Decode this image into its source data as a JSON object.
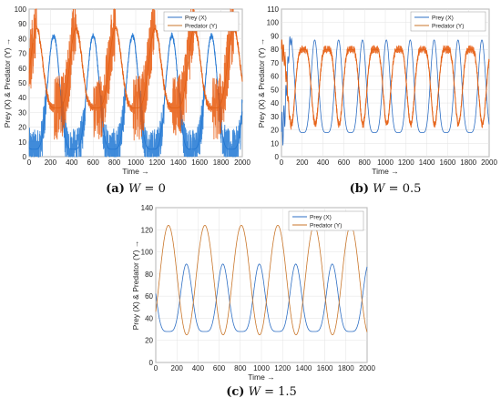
{
  "colors": {
    "prey": "#2e6fc4",
    "predator": "#c9762a",
    "predatorNoisy": "#e8590c",
    "preyNoisy": "#1f77d4",
    "grid": "#e3e3e3"
  },
  "chart_data": [
    {
      "type": "line",
      "caption": {
        "label": "(a)",
        "var": "W",
        "eq": "= 0"
      },
      "xlabel": "Time →",
      "ylabel": "Prey (X) & Predator (Y) →",
      "xlim": [
        0,
        2000
      ],
      "ylim": [
        0,
        100
      ],
      "xticks": [
        0,
        200,
        400,
        600,
        800,
        1000,
        1200,
        1400,
        1600,
        1800,
        2000
      ],
      "yticks": [
        0,
        10,
        20,
        30,
        40,
        50,
        60,
        70,
        80,
        90,
        100
      ],
      "grid": true,
      "legend": "top-right",
      "series": [
        {
          "name": "Prey (X)",
          "period": 370,
          "phase": 230,
          "min": 5,
          "max": 82,
          "shape": "peak",
          "noise": 14,
          "noiseFrom": 0.58
        },
        {
          "name": "Predator (Y)",
          "period": 370,
          "phase": 70,
          "min": 33,
          "max": 87,
          "shape": "peak",
          "noise": 22,
          "noiseFrom": 0.55
        }
      ]
    },
    {
      "type": "line",
      "caption": {
        "label": "(b)",
        "var": "W",
        "eq": "= 0.5"
      },
      "xlabel": "Time →",
      "ylabel": "Prey (X) & Predator (Y) →",
      "xlim": [
        0,
        2000
      ],
      "ylim": [
        0,
        110
      ],
      "xticks": [
        0,
        200,
        400,
        600,
        800,
        1000,
        1200,
        1400,
        1600,
        1800,
        2000
      ],
      "yticks": [
        0,
        10,
        20,
        30,
        40,
        50,
        60,
        70,
        80,
        90,
        100,
        110
      ],
      "grid": true,
      "legend": "top-right",
      "series": [
        {
          "name": "Prey (X)",
          "period": 230,
          "phase": 320,
          "min": 18,
          "max": 87,
          "shape": "peak",
          "noise": 0,
          "noiseFrom": 1
        },
        {
          "name": "Predator (Y)",
          "period": 230,
          "phase": 210,
          "min": 24,
          "max": 80,
          "shape": "trough",
          "noise": 3,
          "noiseFrom": 0.0
        }
      ]
    },
    {
      "type": "line",
      "caption": {
        "label": "(c)",
        "var": "W",
        "eq": "= 1.5"
      },
      "xlabel": "Time →",
      "ylabel": "Prey (X) & Predator (Y) →",
      "xlim": [
        0,
        2000
      ],
      "ylim": [
        0,
        140
      ],
      "xticks": [
        0,
        200,
        400,
        600,
        800,
        1000,
        1200,
        1400,
        1600,
        1800,
        2000
      ],
      "yticks": [
        0,
        20,
        40,
        60,
        80,
        100,
        120,
        140
      ],
      "grid": true,
      "legend": "top-right",
      "series": [
        {
          "name": "Prey (X)",
          "period": 345,
          "phase": 290,
          "min": 28,
          "max": 89,
          "shape": "peak",
          "noise": 0,
          "noiseFrom": 1
        },
        {
          "name": "Predator (Y)",
          "period": 345,
          "phase": 120,
          "min": 25,
          "max": 124,
          "shape": "sine",
          "noise": 0,
          "noiseFrom": 1
        }
      ]
    }
  ]
}
